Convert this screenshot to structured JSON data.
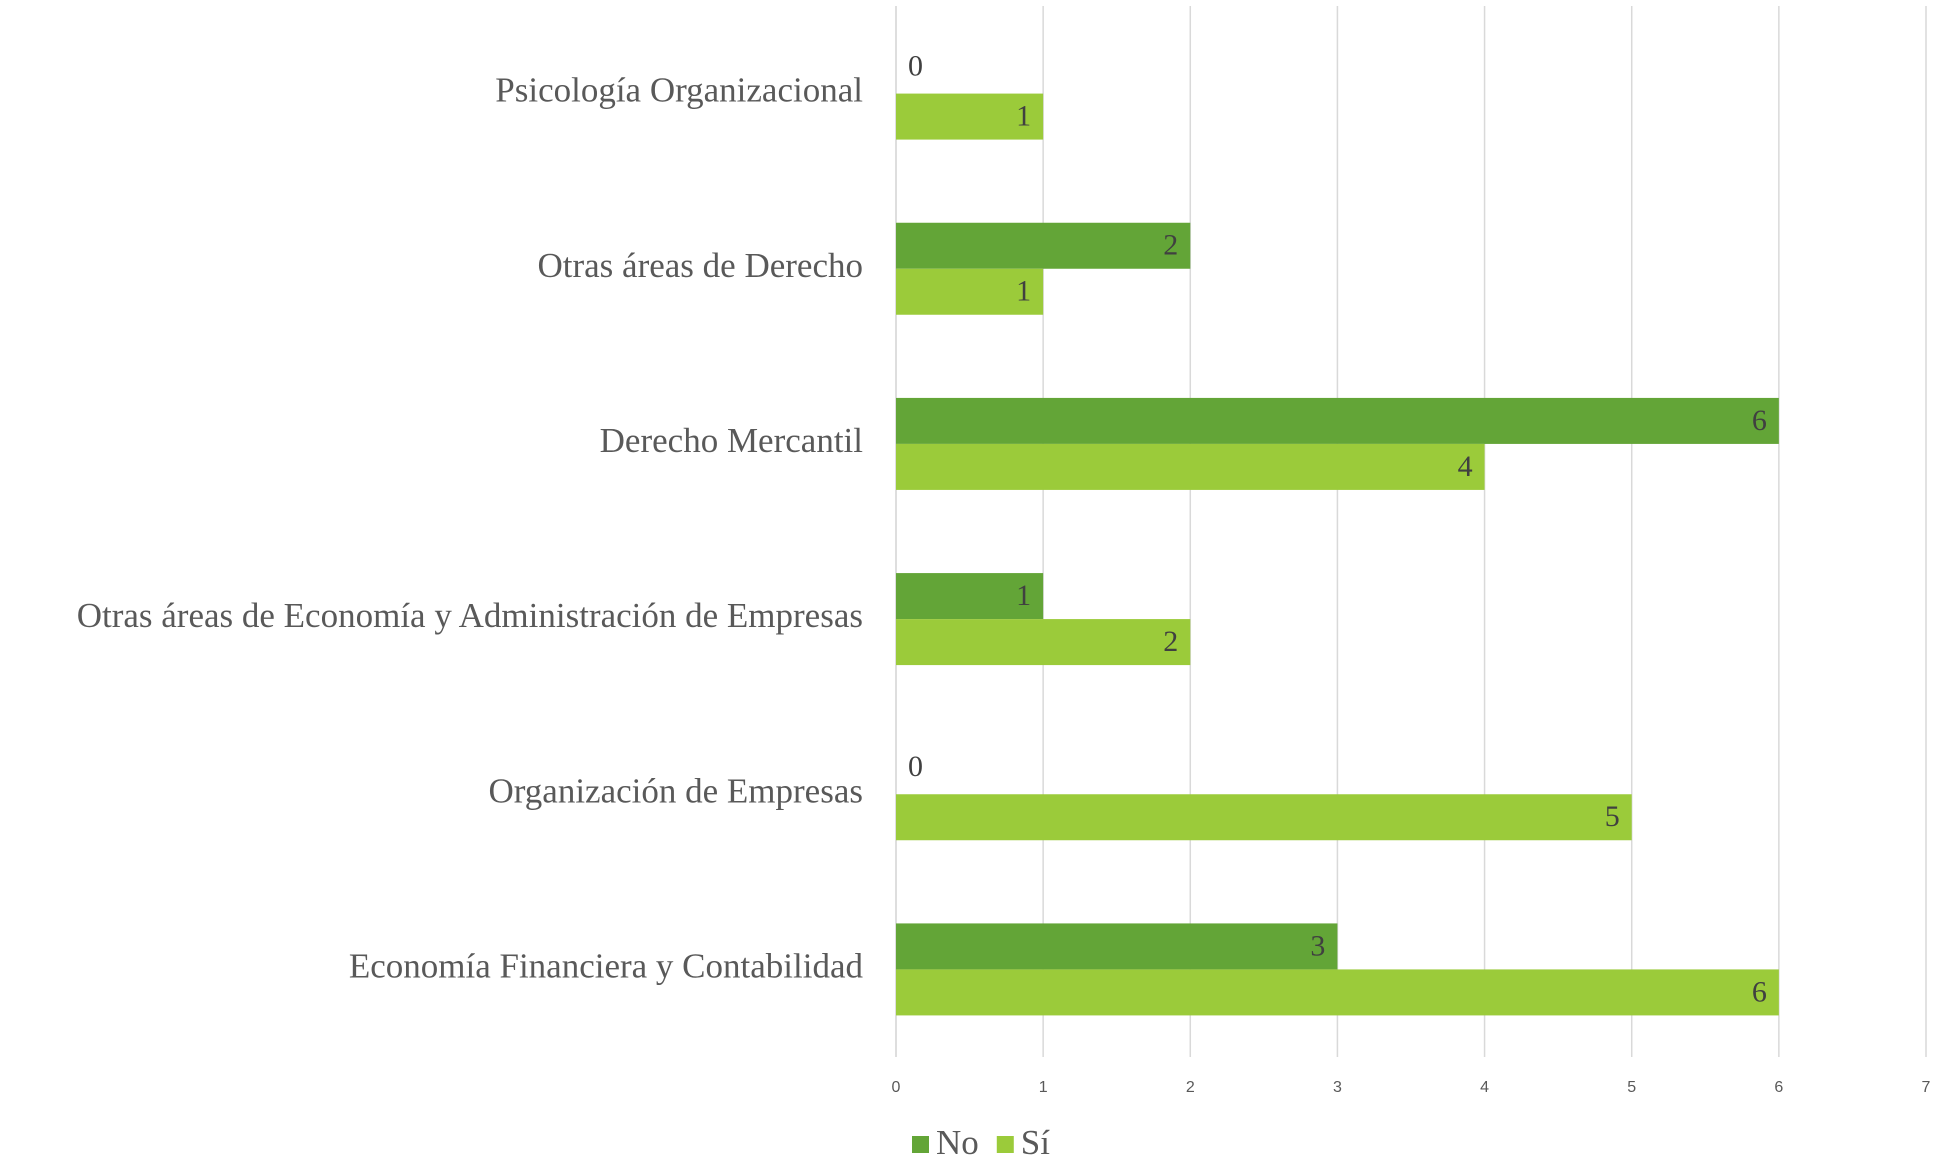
{
  "chart_data": {
    "type": "bar",
    "orientation": "horizontal",
    "categories": [
      "Psicología Organizacional",
      "Otras áreas de Derecho",
      "Derecho Mercantil",
      "Otras áreas de Economía y Administración de Empresas",
      "Organización de Empresas",
      "Economía Financiera y Contabilidad"
    ],
    "series": [
      {
        "name": "No",
        "color": "#63a537",
        "values": [
          0,
          2,
          6,
          1,
          0,
          3
        ]
      },
      {
        "name": "Sí",
        "color": "#9bcb3a",
        "values": [
          1,
          1,
          4,
          2,
          5,
          6
        ]
      }
    ],
    "xlim": [
      0,
      7
    ],
    "xticks": [
      0,
      1,
      2,
      3,
      4,
      5,
      6,
      7
    ],
    "grid": true,
    "legend": "bottom"
  }
}
